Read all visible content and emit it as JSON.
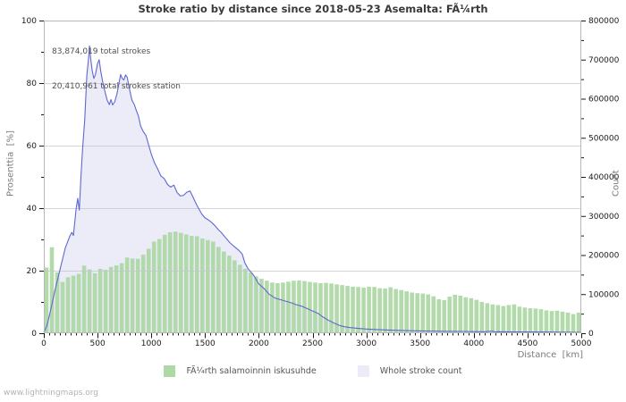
{
  "footer": {
    "watermark": "www.lightningmaps.org"
  },
  "chart_data": {
    "type": "mixed-bar-area",
    "title": "Stroke ratio by distance since 2018-05-23 Asemalta: FÃ¼rth",
    "annotations": [
      "83,874,019 total strokes",
      "20,410,961 total strokes station"
    ],
    "axes": {
      "left": {
        "label": "Prosenttia  [%]",
        "min": 0,
        "max": 100,
        "ticks": [
          0,
          20,
          40,
          60,
          80,
          100
        ],
        "tick_labels": [
          "0",
          "20",
          "40",
          "60",
          "80",
          "100"
        ],
        "minor_step": 10
      },
      "right": {
        "label": "Count",
        "min": 0,
        "max": 800000,
        "ticks": [
          0,
          100000,
          200000,
          300000,
          400000,
          500000,
          600000,
          700000,
          800000
        ],
        "tick_labels": [
          "0",
          "100000",
          "200000",
          "300000",
          "400000",
          "500000",
          "600000",
          "700000",
          "800000"
        ],
        "minor_step": 50000
      },
      "x": {
        "label": "Distance  [km]",
        "min": 0,
        "max": 5000,
        "ticks": [
          0,
          500,
          1000,
          1500,
          2000,
          2500,
          3000,
          3500,
          4000,
          4500,
          5000
        ],
        "tick_labels": [
          "0",
          "500",
          "1000",
          "1500",
          "2000",
          "2500",
          "3000",
          "3500",
          "4000",
          "4500",
          "5000"
        ],
        "minor_step": 50
      }
    },
    "grid": {
      "on": true,
      "at_left_ticks": [
        20,
        40,
        60,
        80,
        100
      ],
      "color": "#c4c4cc"
    },
    "series": [
      {
        "name": "FÃ¼rth salamoinnin iskusuhde",
        "type": "bar",
        "axis": "left",
        "color": "#aed8a6",
        "bin_km": 50,
        "values_pct": [
          21.0,
          27.5,
          19.5,
          16.4,
          17.9,
          18.4,
          19.0,
          21.6,
          20.4,
          19.2,
          20.6,
          20.3,
          21.2,
          21.7,
          22.4,
          24.2,
          23.9,
          23.8,
          25.1,
          27.0,
          29.3,
          30.1,
          31.5,
          32.3,
          32.5,
          32.1,
          31.6,
          31.1,
          31.0,
          30.3,
          29.8,
          29.3,
          27.6,
          26.1,
          24.8,
          23.3,
          21.9,
          20.6,
          19.4,
          18.2,
          17.4,
          16.8,
          16.2,
          16.0,
          16.2,
          16.5,
          16.8,
          16.9,
          16.7,
          16.4,
          16.2,
          16.0,
          16.1,
          15.9,
          15.6,
          15.4,
          15.1,
          14.9,
          14.8,
          14.6,
          14.9,
          14.8,
          14.4,
          14.3,
          14.7,
          14.1,
          13.8,
          13.4,
          13.0,
          12.8,
          12.7,
          12.4,
          11.8,
          10.9,
          10.6,
          11.7,
          12.3,
          12.0,
          11.5,
          11.2,
          10.7,
          10.0,
          9.6,
          9.2,
          9.0,
          8.7,
          9.0,
          9.2,
          8.5,
          8.2,
          8.0,
          7.9,
          7.7,
          7.3,
          7.1,
          7.2,
          6.9,
          6.6,
          6.1,
          6.6
        ]
      },
      {
        "name": "Whole stroke count",
        "type": "area-line",
        "axis": "right",
        "fill": "#ececf9",
        "line": "#5f68cf",
        "x_km": [
          0,
          30,
          60,
          100,
          150,
          200,
          240,
          260,
          275,
          300,
          315,
          330,
          345,
          360,
          380,
          400,
          415,
          425,
          435,
          450,
          465,
          480,
          500,
          515,
          530,
          550,
          570,
          590,
          610,
          625,
          640,
          660,
          680,
          700,
          715,
          730,
          745,
          760,
          775,
          800,
          820,
          840,
          860,
          880,
          900,
          925,
          950,
          975,
          1000,
          1030,
          1060,
          1090,
          1120,
          1150,
          1180,
          1210,
          1240,
          1270,
          1300,
          1330,
          1360,
          1385,
          1410,
          1440,
          1470,
          1500,
          1530,
          1560,
          1590,
          1620,
          1650,
          1690,
          1730,
          1770,
          1810,
          1845,
          1870,
          1900,
          1950,
          2000,
          2050,
          2100,
          2150,
          2200,
          2250,
          2300,
          2350,
          2400,
          2450,
          2500,
          2550,
          2600,
          2650,
          2700,
          2750,
          2800,
          2850,
          2900,
          2950,
          3000,
          3100,
          3200,
          3300,
          3400,
          3500,
          3600,
          3700,
          3800,
          3900,
          4000,
          4100,
          4170,
          4200,
          4230,
          4300,
          4400,
          4500,
          4600,
          4700,
          4800,
          4900,
          5000
        ],
        "counts": [
          2000,
          20000,
          55000,
          105000,
          162000,
          218000,
          247000,
          258000,
          250000,
          318000,
          345000,
          315000,
          400000,
          470000,
          545000,
          660000,
          700000,
          735000,
          705000,
          672000,
          652000,
          662000,
          690000,
          700000,
          670000,
          640000,
          617000,
          596000,
          585000,
          598000,
          584000,
          592000,
          612000,
          640000,
          662000,
          652000,
          648000,
          661000,
          655000,
          620000,
          596000,
          586000,
          570000,
          556000,
          530000,
          516000,
          506000,
          482000,
          458000,
          436000,
          420000,
          402000,
          396000,
          381000,
          374000,
          379000,
          360000,
          351000,
          353000,
          361000,
          364000,
          350000,
          335000,
          319000,
          305000,
          295000,
          290000,
          284000,
          276000,
          266000,
          258000,
          245000,
          232000,
          222000,
          213000,
          203000,
          180000,
          165000,
          149000,
          126000,
          114000,
          99000,
          90000,
          86000,
          82000,
          78000,
          73000,
          69000,
          63000,
          57000,
          51000,
          41000,
          33000,
          26000,
          20000,
          16500,
          14500,
          13000,
          11800,
          10800,
          9300,
          8300,
          7400,
          6500,
          6000,
          5500,
          5000,
          4800,
          4500,
          4200,
          4000,
          5200,
          3400,
          3900,
          3700,
          3500,
          3300,
          3100,
          2900,
          2700,
          2500,
          2300
        ]
      }
    ],
    "legend_position": "bottom-center"
  }
}
